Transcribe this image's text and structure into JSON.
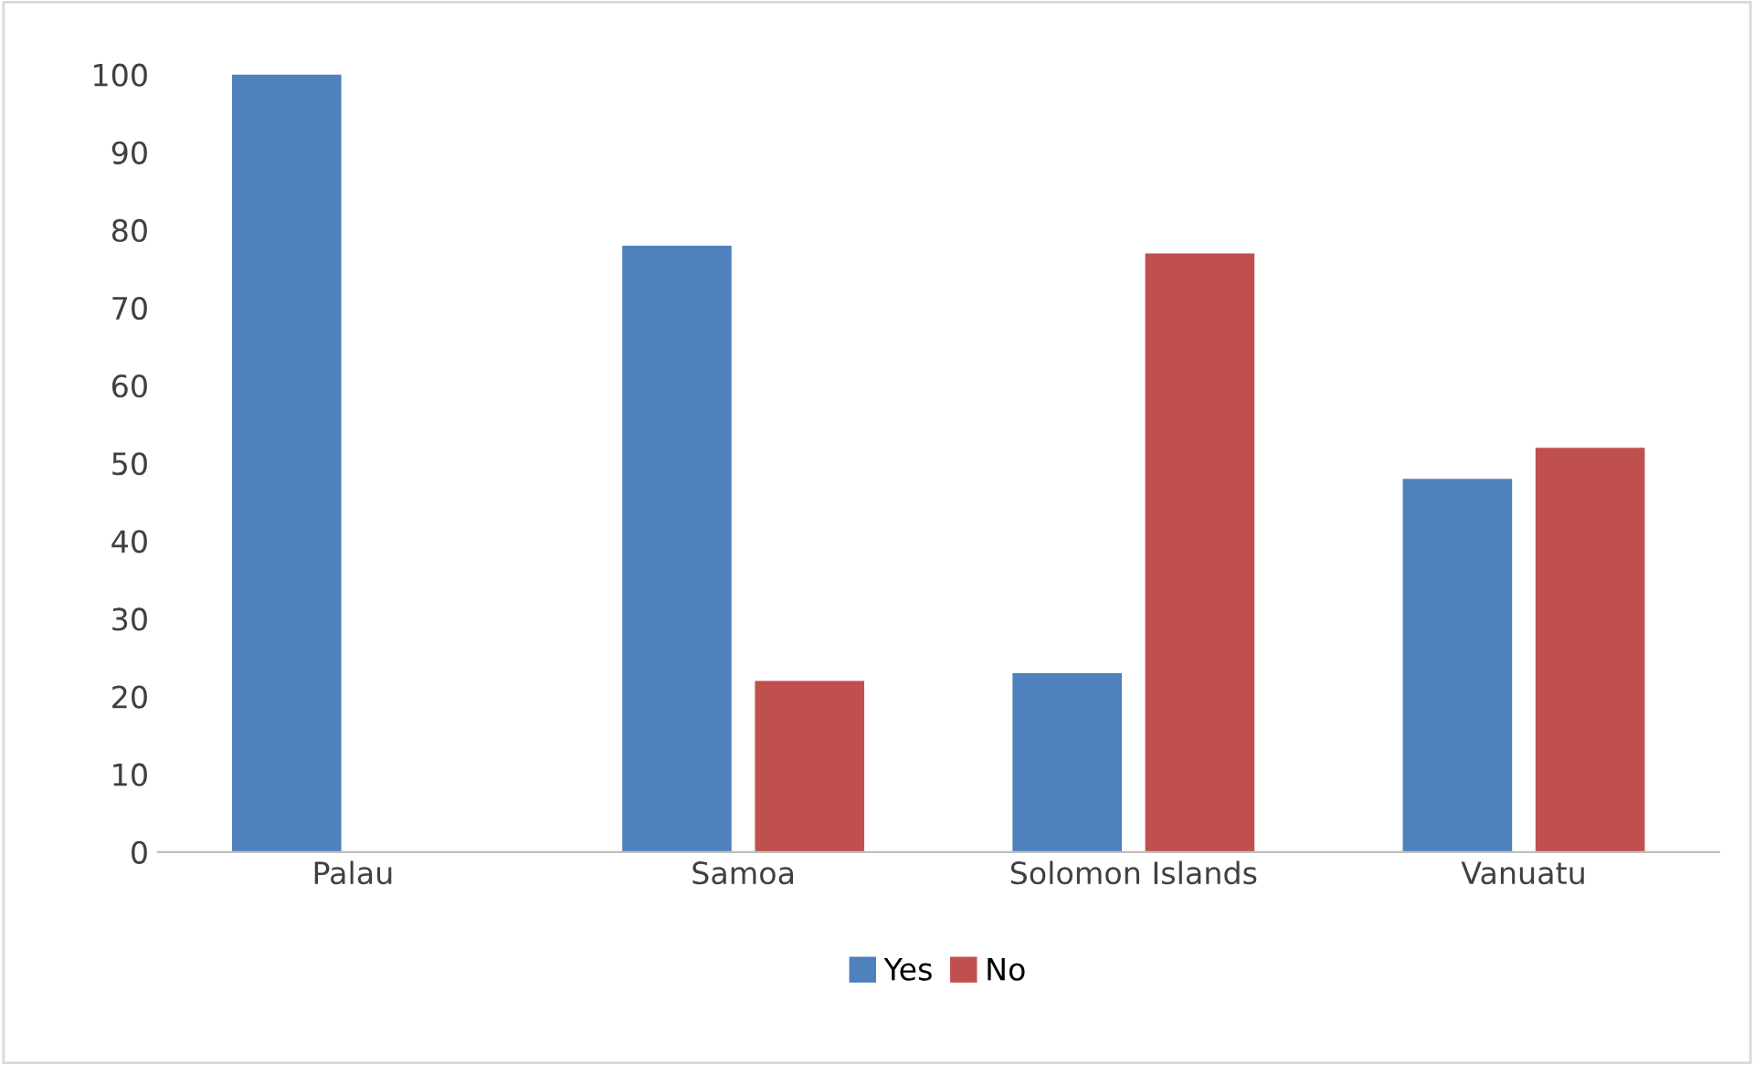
{
  "chart_data": {
    "type": "bar",
    "categories": [
      "Palau",
      "Samoa",
      "Solomon Islands",
      "Vanuatu"
    ],
    "series": [
      {
        "name": "Yes",
        "color": "#4f81bd",
        "values": [
          100,
          78,
          23,
          48
        ]
      },
      {
        "name": "No",
        "color": "#c0504d",
        "values": [
          0,
          22,
          77,
          52
        ]
      }
    ],
    "ylim": [
      0,
      100
    ],
    "yticks": [
      0,
      10,
      20,
      30,
      40,
      50,
      60,
      70,
      80,
      90,
      100
    ],
    "grid": false,
    "legend": "bottom"
  }
}
